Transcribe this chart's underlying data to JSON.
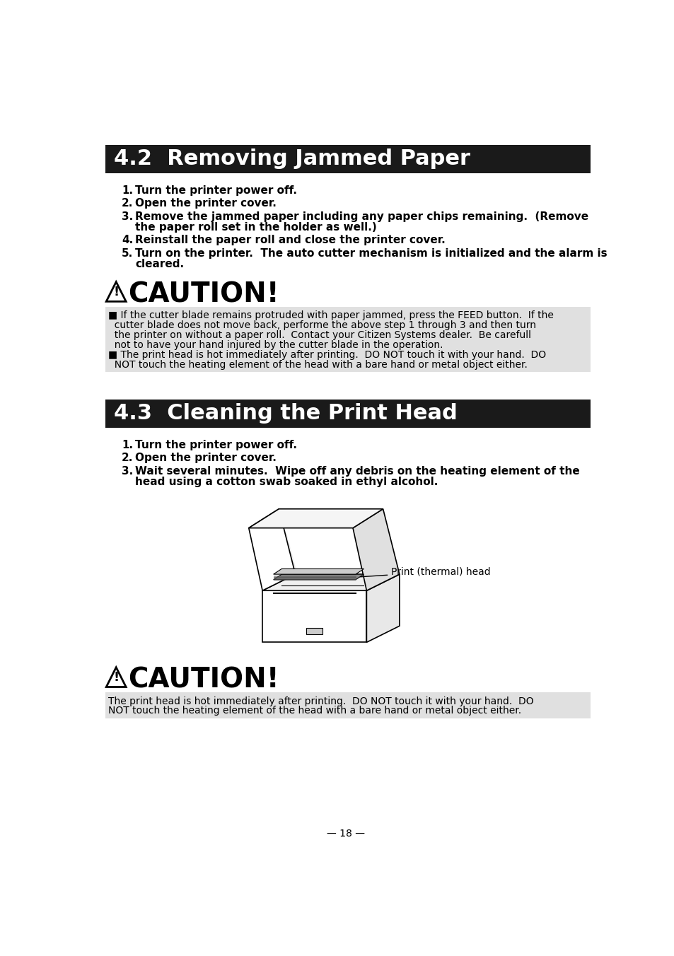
{
  "page_bg": "#ffffff",
  "section1_title": "4.2  Removing Jammed Paper",
  "section1_header_bg": "#1a1a1a",
  "section1_header_text_color": "#ffffff",
  "section1_steps": [
    [
      "1.",
      "Turn the printer power off."
    ],
    [
      "2.",
      "Open the printer cover."
    ],
    [
      "3.",
      "Remove the jammed paper including any paper chips remaining.  (Remove",
      "the paper roll set in the holder as well.)"
    ],
    [
      "4.",
      "Reinstall the paper roll and close the printer cover."
    ],
    [
      "5.",
      "Turn on the printer.  The auto cutter mechanism is initialized and the alarm is",
      "cleared."
    ]
  ],
  "caution1_lines": [
    "■ If the cutter blade remains protruded with paper jammed, press the FEED button.  If the",
    "  cutter blade does not move back, performe the above step 1 through 3 and then turn",
    "  the printer on without a paper roll.  Contact your Citizen Systems dealer.  Be carefull",
    "  not to have your hand injured by the cutter blade in the operation.",
    "■ The print head is hot immediately after printing.  DO NOT touch it with your hand.  DO",
    "  NOT touch the heating element of the head with a bare hand or metal object either."
  ],
  "caution_bg": "#e0e0e0",
  "section2_title": "4.3  Cleaning the Print Head",
  "section2_header_bg": "#1a1a1a",
  "section2_header_text_color": "#ffffff",
  "section2_steps": [
    [
      "1.",
      "Turn the printer power off."
    ],
    [
      "2.",
      "Open the printer cover."
    ],
    [
      "3.",
      "Wait several minutes.  Wipe off any debris on the heating element of the",
      "head using a cotton swab soaked in ethyl alcohol."
    ]
  ],
  "printer_label": "Print (thermal) head",
  "caution2_lines": [
    "The print head is hot immediately after printing.  DO NOT touch it with your hand.  DO",
    "NOT touch the heating element of the head with a bare hand or metal object either."
  ],
  "page_number": "— 18 —",
  "body_font": 11,
  "step_font": 11,
  "caution_title_font": 28,
  "header_font": 22
}
